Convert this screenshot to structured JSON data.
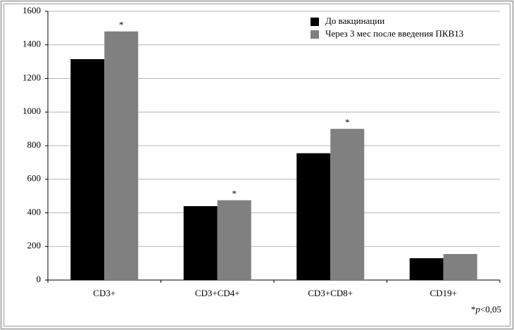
{
  "chart_data": {
    "type": "bar",
    "categories": [
      "CD3+",
      "CD3+CD4+",
      "CD3+CD8+",
      "CD19+"
    ],
    "series": [
      {
        "name": "До вакцинации",
        "color": "#000000",
        "values": [
          1315,
          440,
          755,
          130
        ]
      },
      {
        "name": "Через 3 мес после введения ПКВ13",
        "color": "#808080",
        "values": [
          1480,
          475,
          900,
          155
        ]
      }
    ],
    "significance": [
      "*",
      "*",
      "*",
      null
    ],
    "ylim": [
      0,
      1600
    ],
    "yticks": [
      0,
      200,
      400,
      600,
      800,
      1000,
      1200,
      1400,
      1600
    ],
    "grid": true,
    "legend": "top-right",
    "footnote": {
      "prefix": "*",
      "italic": "p",
      "suffix": "<0,05"
    }
  }
}
